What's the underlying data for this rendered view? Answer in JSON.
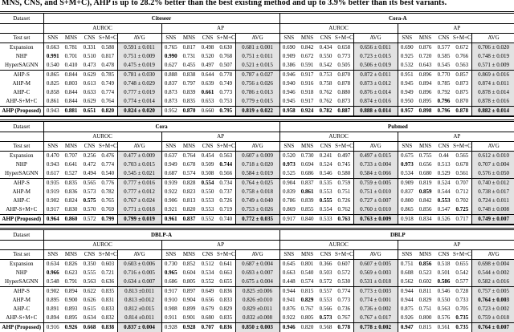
{
  "meta": {
    "bold_prefix": "*"
  },
  "caption_tail": "MNS, CNS, and S+M+C), AHP is up to 28.2% better than the best existing method and up to 3.9% better than its best variants.",
  "header_labels": {
    "dataset": "Dataset",
    "test_set": "Test set",
    "auroc": "AUROC",
    "ap": "AP",
    "sub_cols": [
      "SNS",
      "MNS",
      "CNS",
      "S+M+C",
      "AVG"
    ]
  },
  "row_labels": [
    "Expansion",
    "NHP",
    "HyperSAGNN",
    "AHP-S",
    "AHP-M",
    "AHP-C",
    "AHP-S+M+C",
    "*AHP (Proposed)"
  ],
  "tables": [
    {
      "left": {
        "name": "Citeseer",
        "auroc": [
          [
            "0.663",
            "0.781",
            "0.331",
            "0.588",
            "0.591 ± 0.011"
          ],
          [
            "*0.991",
            "0.701",
            "0.510",
            "0.817",
            "0.751 ± 0.009"
          ],
          [
            "0.540",
            "0.410",
            "0.473",
            "0.478",
            "0.475 ± 0.019"
          ],
          [
            "0.865",
            "0.844",
            "0.629",
            "0.785",
            "0.781 ± 0.030"
          ],
          [
            "0.825",
            "0.803",
            "0.613",
            "0.749",
            "0.748 ± 0.029"
          ],
          [
            "0.858",
            "0.844",
            "0.633",
            "0.774",
            "0.777 ± 0.019"
          ],
          [
            "0.861",
            "0.844",
            "0.629",
            "0.764",
            "0.774 ± 0.014"
          ],
          [
            "0.943",
            "*0.881",
            "*0.651",
            "*0.820",
            "*0.824 ± 0.020"
          ]
        ],
        "ap": [
          [
            "0.765",
            "0.817",
            "0.498",
            "0.630",
            "0.681 ± 0.001"
          ],
          [
            "*0.990",
            "0.731",
            "0.520",
            "0.768",
            "0.751 ± 0.011"
          ],
          [
            "0.627",
            "0.455",
            "0.497",
            "0.507",
            "0.521 ± 0.015"
          ],
          [
            "0.888",
            "0.838",
            "0.644",
            "0.778",
            "0.787 ± 0.027"
          ],
          [
            "0.837",
            "0.797",
            "0.639",
            "0.749",
            "0.756 ± 0.026"
          ],
          [
            "0.873",
            "0.839",
            "*0.661",
            "0.773",
            "0.786 ± 0.013"
          ],
          [
            "0.873",
            "0.835",
            "0.653",
            "0.753",
            "0.779 ± 0.015"
          ],
          [
            "0.952",
            "*0.870",
            "0.660",
            "*0.795",
            "*0.819 ± 0.022"
          ]
        ]
      },
      "right": {
        "name": "Cora-A",
        "auroc": [
          [
            "0.690",
            "0.842",
            "0.434",
            "0.658",
            "0.656 ± 0.011"
          ],
          [
            "0.909",
            "0.672",
            "0.550",
            "0.773",
            "0.723 ± 0.015"
          ],
          [
            "0.386",
            "0.591",
            "0.542",
            "0.505",
            "0.506 ± 0.019"
          ],
          [
            "0.946",
            "0.917",
            "0.753",
            "0.870",
            "0.872 ± 0.011"
          ],
          [
            "0.940",
            "0.916",
            "0.758",
            "0.878",
            "0.873 ± 0.012"
          ],
          [
            "0.946",
            "0.918",
            "0.762",
            "0.880",
            "0.876 ± 0.014"
          ],
          [
            "0.945",
            "0.917",
            "0.762",
            "0.873",
            "0.874 ± 0.016"
          ],
          [
            "*0.958",
            "*0.924",
            "*0.782",
            "*0.887",
            "*0.888 ± 0.014"
          ]
        ],
        "ap": [
          [
            "0.690",
            "0.876",
            "0.577",
            "0.672",
            "0.706 ± 0.020"
          ],
          [
            "0.925",
            "0.720",
            "0.585",
            "0.766",
            "0.748 ± 0.019"
          ],
          [
            "0.532",
            "0.643",
            "0.545",
            "0.563",
            "0.571 ± 0.009"
          ],
          [
            "0.951",
            "0.896",
            "0.770",
            "0.857",
            "0.869 ± 0.016"
          ],
          [
            "0.945",
            "0.894",
            "0.785",
            "0.873",
            "0.874 ± 0.011"
          ],
          [
            "0.949",
            "0.896",
            "0.792",
            "0.875",
            "0.878 ± 0.014"
          ],
          [
            "0.950",
            "0.895",
            "*0.796",
            "0.870",
            "0.878 ± 0.016"
          ],
          [
            "*0.957",
            "*0.898",
            "*0.796",
            "*0.878",
            "*0.882 ± 0.014"
          ]
        ]
      }
    },
    {
      "left": {
        "name": "Cora",
        "auroc": [
          [
            "0.470",
            "0.707",
            "0.256",
            "0.476",
            "0.477 ± 0.009"
          ],
          [
            "0.943",
            "0.641",
            "0.472",
            "0.774",
            "0.703 ± 0.015"
          ],
          [
            "0.617",
            "0.527",
            "0.494",
            "0.540",
            "0.545 ± 0.021"
          ],
          [
            "0.935",
            "0.835",
            "0.565",
            "0.776",
            "0.777 ± 0.016"
          ],
          [
            "0.919",
            "0.836",
            "0.573",
            "0.782",
            "0.777 ± 0.012"
          ],
          [
            "0.902",
            "0.824",
            "*0.575",
            "0.765",
            "0.767 ± 0.024"
          ],
          [
            "0.917",
            "0.830",
            "0.570",
            "0.769",
            "0.771 ± 0.018"
          ],
          [
            "*0.964",
            "*0.860",
            "0.572",
            "*0.799",
            "*0.799 ± 0.019"
          ]
        ],
        "ap": [
          [
            "0.637",
            "0.764",
            "0.454",
            "0.563",
            "0.607 ± 0.009"
          ],
          [
            "0.949",
            "0.678",
            "0.509",
            "*0.744",
            "0.718 ± 0.020"
          ],
          [
            "0.687",
            "0.574",
            "0.508",
            "0.566",
            "0.584 ± 0.019"
          ],
          [
            "0.939",
            "0.828",
            "*0.554",
            "0.734",
            "0.764 ± 0.025"
          ],
          [
            "0.922",
            "0.823",
            "0.550",
            "0.737",
            "0.758 ± 0.018"
          ],
          [
            "0.906",
            "0.813",
            "0.553",
            "0.726",
            "0.749 ± 0.040"
          ],
          [
            "0.921",
            "0.820",
            "0.553",
            "0.719",
            "0.753 ± 0.026"
          ],
          [
            "*0.961",
            "*0.837",
            "0.552",
            "0.740",
            "*0.772 ± 0.035"
          ]
        ]
      },
      "right": {
        "name": "Pubmed",
        "auroc": [
          [
            "0.520",
            "0.730",
            "0.241",
            "0.497",
            "0.497 ± 0.015"
          ],
          [
            "*0.973",
            "0.694",
            "0.524",
            "0.745",
            "0.733 ± 0.004"
          ],
          [
            "0.525",
            "0.686",
            "0.546",
            "0.580",
            "0.584 ± 0.066"
          ],
          [
            "0.904",
            "0.837",
            "0.535",
            "0.759",
            "0.759 ± 0.005"
          ],
          [
            "0.839",
            "*0.861",
            "0.553",
            "0.751",
            "0.751 ± 0.010"
          ],
          [
            "0.786",
            "0.839",
            "*0.555",
            "0.726",
            "0.727 ± 0.007"
          ],
          [
            "0.869",
            "0.855",
            "0.554",
            "0.762",
            "0.760 ± 0.010"
          ],
          [
            "0.917",
            "0.840",
            "0.533",
            "*0.763",
            "*0.763 ± 0.009"
          ]
        ],
        "ap": [
          [
            "0.675",
            "0.755",
            "0.44",
            "0.565",
            "0.612 ± 0.010"
          ],
          [
            "*0.973",
            "0.656",
            "0.513",
            "0.678",
            "0.707 ± 0.004"
          ],
          [
            "0.534",
            "0.680",
            "0.529",
            "0.561",
            "0.576 ± 0.050"
          ],
          [
            "0.909",
            "0.819",
            "0.524",
            "0.707",
            "0.740 ± 0.012"
          ],
          [
            "0.837",
            "*0.859",
            "0.544",
            "0.712",
            "0.738 ± 0.017"
          ],
          [
            "0.800",
            "0.842",
            "*0.553",
            "0.702",
            "0.724 ± 0.011"
          ],
          [
            "0.865",
            "0.856",
            "0.547",
            "*0.725",
            "0.748 ± 0.008"
          ],
          [
            "0.918",
            "0.834",
            "0.526",
            "0.717",
            "*0.749 ± 0.007"
          ]
        ]
      }
    },
    {
      "left": {
        "name": "DBLP-A",
        "auroc": [
          [
            "0.634",
            "0.826",
            "0.350",
            "0.603",
            "0.603 ± 0.006"
          ],
          [
            "*0.966",
            "0.623",
            "0.555",
            "0.721",
            "0.716 ± 0.005"
          ],
          [
            "0.548",
            "0.791",
            "0.563",
            "0.636",
            "0.634 ± 0.007"
          ],
          [
            "0.902",
            "0.894",
            "0.622",
            "0.835",
            "0.813 ±0.011"
          ],
          [
            "0.895",
            "0.900",
            "0.626",
            "0.831",
            "0.813 ±0.012"
          ],
          [
            "0.891",
            "0.893",
            "0.615",
            "0.833",
            "0.812 ±0.015"
          ],
          [
            "0.894",
            "0.895",
            "0.634",
            "0.832",
            "0.814 ±0.011"
          ],
          [
            "0.916",
            "*0.926",
            "*0.668",
            "*0.838",
            "*0.837 ± 0.004"
          ]
        ],
        "ap": [
          [
            "0.730",
            "0.852",
            "0.512",
            "0.641",
            "0.687 ± 0.004"
          ],
          [
            "*0.965",
            "0.604",
            "0.534",
            "0.663",
            "0.693 ± 0.007"
          ],
          [
            "0.686",
            "0.805",
            "0.552",
            "0.655",
            "0.675 ± 0.004"
          ],
          [
            "0.917",
            "0.897",
            "0.649",
            "0.836",
            "0.825 ±0.006"
          ],
          [
            "0.910",
            "0.904",
            "0.656",
            "0.833",
            "0.826 ±0.010"
          ],
          [
            "0.908",
            "0.899",
            "0.679",
            "0.829",
            "0.829 ±0.011"
          ],
          [
            "0.911",
            "0.901",
            "0.680",
            "0.835",
            "0.832 ±0.008"
          ],
          [
            "0.928",
            "*0.928",
            "*0.707",
            "*0.836",
            "*0.850 ± 0.003"
          ]
        ]
      },
      "right": {
        "name": "DBLP",
        "auroc": [
          [
            "0.645",
            "0.801",
            "0.366",
            "0.607",
            "0.607 ± 0.005"
          ],
          [
            "0.663",
            "0.540",
            "0.503",
            "0.572",
            "0.569 ± 0.003"
          ],
          [
            "0.448",
            "0.574",
            "0.572",
            "0.530",
            "0.531 ± 0.018"
          ],
          [
            "0.944",
            "0.815",
            "0.557",
            "0.774",
            "0.773 ± 0.003"
          ],
          [
            "0.941",
            "*0.829",
            "0.553",
            "0.773",
            "0.774 ± 0.001"
          ],
          [
            "0.876",
            "0.767",
            "0.566",
            "0.736",
            "0.736 ± 0.002"
          ],
          [
            "0.922",
            "0.805",
            "*0.573",
            "0.767",
            "0.767 ± 0.017"
          ],
          [
            "*0.946",
            "0.820",
            "0.568",
            "*0.778",
            "*0.778 ± 0.002"
          ]
        ],
        "ap": [
          [
            "0.751",
            "*0.856",
            "0.518",
            "0.655",
            "0.698 ± 0.004"
          ],
          [
            "0.608",
            "0.523",
            "0.501",
            "0.542",
            "0.544 ± 0.002"
          ],
          [
            "0.562",
            "0.602",
            "*0.586",
            "0.577",
            "0.582 ± 0.016"
          ],
          [
            "0.944",
            "0.811",
            "0.546",
            "0.728",
            "0.757 ± 0.005"
          ],
          [
            "0.944",
            "0.829",
            "0.550",
            "0.733",
            "*0.764 ± 0.003"
          ],
          [
            "0.875",
            "0.751",
            "0.563",
            "0.705",
            "0.723 ± 0.002"
          ],
          [
            "0.926",
            "0.800",
            "0.576",
            "*0.735",
            "0.759 ± 0.018"
          ],
          [
            "*0.947",
            "0.815",
            "0.561",
            "*0.735",
            "*0.764 ± 0.007"
          ]
        ]
      }
    }
  ]
}
